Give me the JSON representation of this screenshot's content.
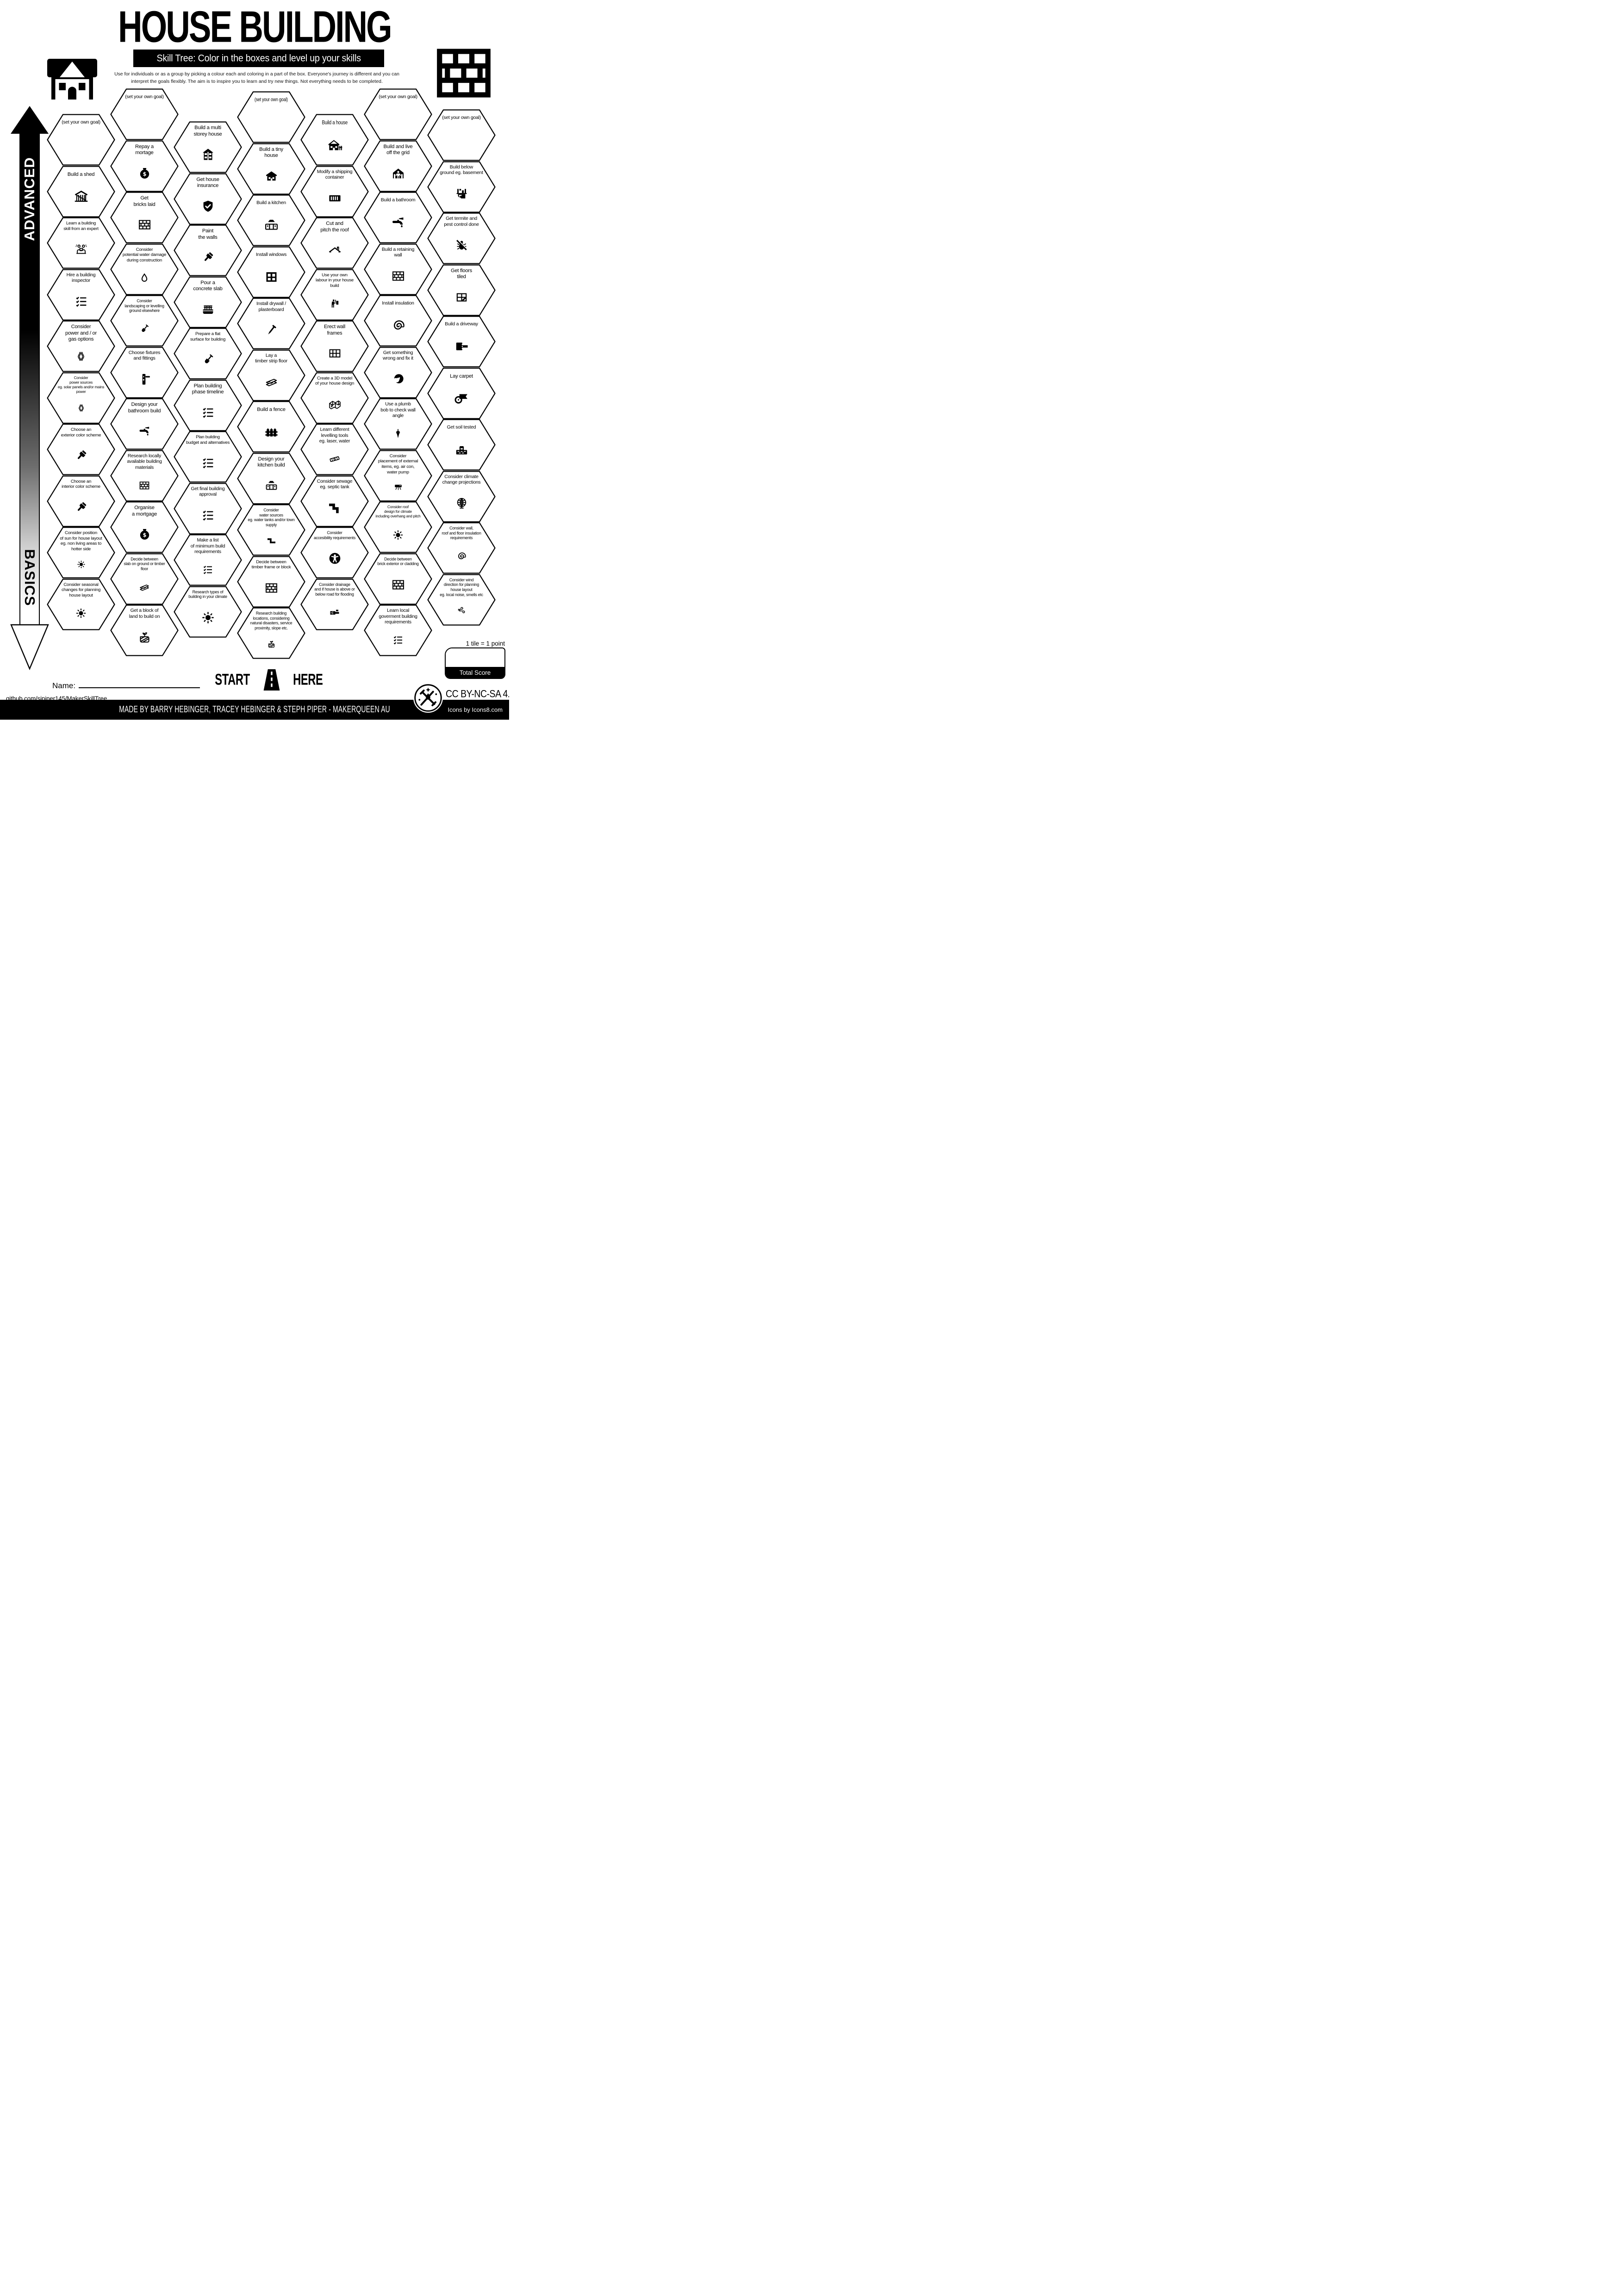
{
  "header": {
    "title": "HOUSE BUILDING",
    "subtitle": "Skill Tree:  Color in the boxes and level up your skills",
    "description": "Use for individuals or as a group by picking a colour each and coloring in a part of the box.  Everyone's journey is different and you can\ninterpret the goals flexibly.  The aim is to inspire you to learn and try new things. Not everything needs to be completed."
  },
  "axis": {
    "advanced_label": "ADVANCED",
    "basics_label": "BASICS"
  },
  "tiles": [
    {
      "col": 0,
      "row": 0,
      "label": "(set your own goal)",
      "icon": null,
      "goal": true
    },
    {
      "col": 0,
      "row": 1,
      "label": "Build a shed",
      "icon": "shed"
    },
    {
      "col": 0,
      "row": 2,
      "label": "Learn a building\nskill from an expert",
      "icon": "mentor"
    },
    {
      "col": 0,
      "row": 3,
      "label": "Hire a building\ninspector",
      "icon": "checklist"
    },
    {
      "col": 0,
      "row": 4,
      "label": "Consider\npower and / or\ngas options",
      "icon": "power-cables"
    },
    {
      "col": 0,
      "row": 5,
      "label": "Consider\npower sources\neg. solar panels and/or mains\npower",
      "icon": "power-cables"
    },
    {
      "col": 0,
      "row": 6,
      "label": "Choose an\nexterior color scheme",
      "icon": "paint-brush"
    },
    {
      "col": 0,
      "row": 7,
      "label": "Choose an\ninterior color scheme",
      "icon": "paint-brush"
    },
    {
      "col": 0,
      "row": 8,
      "label": "Consider position\nof sun for house layout\neg. non living areas to\nhotter side",
      "icon": "sun"
    },
    {
      "col": 0,
      "row": 9,
      "label": "Consider seasonal\nchanges for planning\nhouse layout",
      "icon": "sun"
    },
    {
      "col": 1,
      "row": 0,
      "label": "(set your own goal)",
      "icon": null,
      "goal": true
    },
    {
      "col": 1,
      "row": 1,
      "label": "Repay a\nmortage",
      "icon": "money-bag"
    },
    {
      "col": 1,
      "row": 2,
      "label": "Get\nbricks laid",
      "icon": "brick-wall"
    },
    {
      "col": 1,
      "row": 3,
      "label": "Consider\npotential water damage\nduring construction",
      "icon": "water-drop"
    },
    {
      "col": 1,
      "row": 4,
      "label": "Consider\nlandscaping or levelling\nground elsewhere",
      "icon": "shovel"
    },
    {
      "col": 1,
      "row": 5,
      "label": "Choose fixtures\nand fittings",
      "icon": "door-handle"
    },
    {
      "col": 1,
      "row": 6,
      "label": "Design your\nbathroom build",
      "icon": "faucet"
    },
    {
      "col": 1,
      "row": 7,
      "label": "Research locally\navailable building\nmaterials",
      "icon": "brick-wall"
    },
    {
      "col": 1,
      "row": 8,
      "label": "Organise\na mortgage",
      "icon": "money-bag"
    },
    {
      "col": 1,
      "row": 9,
      "label": "Decide between\nslab on ground or timber\nfloor",
      "icon": "timber-planks"
    },
    {
      "col": 1,
      "row": 10,
      "label": "Get a block of\nland to build on",
      "icon": "land-plot"
    },
    {
      "col": 2,
      "row": 0,
      "label": "Build a multi\nstorey house",
      "icon": "two-storey-house"
    },
    {
      "col": 2,
      "row": 1,
      "label": "Get house\ninsurance",
      "icon": "shield-check"
    },
    {
      "col": 2,
      "row": 2,
      "label": "Paint\nthe walls",
      "icon": "paint-brush"
    },
    {
      "col": 2,
      "row": 3,
      "label": "Pour a\nconcrete slab",
      "icon": "concrete-slab"
    },
    {
      "col": 2,
      "row": 4,
      "label": "Prepare a flat\nsurface for building",
      "icon": "shovel"
    },
    {
      "col": 2,
      "row": 5,
      "label": "Plan building\nphase timeline",
      "icon": "checklist"
    },
    {
      "col": 2,
      "row": 6,
      "label": "Plan building\nbudget and alternatives",
      "icon": "checklist"
    },
    {
      "col": 2,
      "row": 7,
      "label": "Get final building\napproval",
      "icon": "checklist"
    },
    {
      "col": 2,
      "row": 8,
      "label": "Make a list\nof minimum build\nrequirements",
      "icon": "checklist"
    },
    {
      "col": 2,
      "row": 9,
      "label": "Research types of\nbuilding in your climate",
      "icon": "sun"
    },
    {
      "col": 3,
      "row": 0,
      "label": "(set your own goal)",
      "icon": null,
      "goal": true,
      "font": "sans"
    },
    {
      "col": 3,
      "row": 1,
      "label": "Build a tiny\nhouse",
      "icon": "tiny-house"
    },
    {
      "col": 3,
      "row": 2,
      "label": "Build a kitchen",
      "icon": "kitchen-cabinets"
    },
    {
      "col": 3,
      "row": 3,
      "label": "Install windows",
      "icon": "window"
    },
    {
      "col": 3,
      "row": 4,
      "label": "Install drywall /\nplasterboard",
      "icon": "nail"
    },
    {
      "col": 3,
      "row": 5,
      "label": "Lay a\ntimber strip floor",
      "icon": "timber-planks"
    },
    {
      "col": 3,
      "row": 6,
      "label": "Build a fence",
      "icon": "fence"
    },
    {
      "col": 3,
      "row": 7,
      "label": "Design your\nkitchen build",
      "icon": "kitchen-cabinets"
    },
    {
      "col": 3,
      "row": 8,
      "label": "Consider\nwater sources\neg. water tanks and/or town\nsupply",
      "icon": "water-pipe"
    },
    {
      "col": 3,
      "row": 9,
      "label": "Decide between\ntimber frame or block",
      "icon": "brick-wall"
    },
    {
      "col": 3,
      "row": 10,
      "label": "Research building\nlocations, considering\nnatural disasters, service\nproximity, slope etc.",
      "icon": "land-plot"
    },
    {
      "col": 4,
      "row": 0,
      "label": "Build a house",
      "icon": "house",
      "font": "sans"
    },
    {
      "col": 4,
      "row": 1,
      "label": "Modify a shipping\ncontainer",
      "icon": "shipping-container"
    },
    {
      "col": 4,
      "row": 2,
      "label": "Cut and\npitch the roof",
      "icon": "roof"
    },
    {
      "col": 4,
      "row": 3,
      "label": "Use your own\nlabour in your house\nbuild",
      "icon": "painter"
    },
    {
      "col": 4,
      "row": 4,
      "label": "Erect wall\nframes",
      "icon": "wall-frames"
    },
    {
      "col": 4,
      "row": 5,
      "label": "Create a 3D model\nof your house design",
      "icon": "house-3d"
    },
    {
      "col": 4,
      "row": 6,
      "label": "Learn different\nlevelling tools\neg. laser, water",
      "icon": "spirit-level"
    },
    {
      "col": 4,
      "row": 7,
      "label": "Consider sewage\neg. septic tank",
      "icon": "sewage-pipe"
    },
    {
      "col": 4,
      "row": 8,
      "label": "Consider\naccesibility requirements",
      "icon": "accessibility"
    },
    {
      "col": 4,
      "row": 9,
      "label": "Consider drainage\nand if house is above or\nbelow road for flooding",
      "icon": "drainage-pipe"
    },
    {
      "col": 5,
      "row": 0,
      "label": "(set your own goal)",
      "icon": null,
      "goal": true
    },
    {
      "col": 5,
      "row": 1,
      "label": "Build and live\noff the grid",
      "icon": "off-grid-house"
    },
    {
      "col": 5,
      "row": 2,
      "label": "Build a bathroom",
      "icon": "faucet"
    },
    {
      "col": 5,
      "row": 3,
      "label": "Build a retaining\nwall",
      "icon": "brick-wall"
    },
    {
      "col": 5,
      "row": 4,
      "label": "Install insulation",
      "icon": "insulation-roll"
    },
    {
      "col": 5,
      "row": 5,
      "label": "Get something\nwrong and fix it",
      "icon": "facepalm"
    },
    {
      "col": 5,
      "row": 6,
      "label": "Use a plumb\nbob to check wall\nangle",
      "icon": "plumb-bob"
    },
    {
      "col": 5,
      "row": 7,
      "label": "Consider\nplacement of external\nitems, eg. air con,\nwater pump",
      "icon": "air-conditioner"
    },
    {
      "col": 5,
      "row": 8,
      "label": "Consider roof\ndesign for climate\nincluding overhang and pitch",
      "icon": "sun"
    },
    {
      "col": 5,
      "row": 9,
      "label": "Decide between\nbrick exterior or cladding",
      "icon": "brick-wall"
    },
    {
      "col": 5,
      "row": 10,
      "label": "Learn local\ngoverment building\nrequirements",
      "icon": "checklist"
    },
    {
      "col": 6,
      "row": 0,
      "label": "(set your own goal)",
      "icon": null,
      "goal": true
    },
    {
      "col": 6,
      "row": 1,
      "label": "Build below\nground eg. basement",
      "icon": "basement"
    },
    {
      "col": 6,
      "row": 2,
      "label": "Get termite and\npest control done",
      "icon": "pest-control"
    },
    {
      "col": 6,
      "row": 3,
      "label": "Get floors\ntiled",
      "icon": "floor-tiles"
    },
    {
      "col": 6,
      "row": 4,
      "label": "Build a driveway",
      "icon": "driveway"
    },
    {
      "col": 6,
      "row": 5,
      "label": "Lay carpet",
      "icon": "carpet-roll"
    },
    {
      "col": 6,
      "row": 6,
      "label": "Get soil tested",
      "icon": "soil-test"
    },
    {
      "col": 6,
      "row": 7,
      "label": "Consider climate\nchange projections",
      "icon": "globe"
    },
    {
      "col": 6,
      "row": 8,
      "label": "Consider wall,\nroof and floor insulation\nrequirements",
      "icon": "insulation-roll"
    },
    {
      "col": 6,
      "row": 9,
      "label": "Consider wind\ndirection for planning\nhouse layout\neg. local noise, smells etc",
      "icon": "wind"
    }
  ],
  "footer": {
    "start_left": "START",
    "start_right": "HERE",
    "name_label": "Name:",
    "github": "github.com/sjpiper145/MakerSkillTree",
    "tile_point": "1 tile = 1 point",
    "total_score_label": "Total Score",
    "license": "CC BY-NC-SA 4.0",
    "credits": "MADE BY BARRY HEBINGER, TRACEY HEBINGER & STEPH PIPER  -  MAKERQUEEN AU",
    "icons_credit": "Icons by Icons8.com"
  },
  "colors": {
    "ink": "#000000",
    "paper": "#ffffff"
  }
}
